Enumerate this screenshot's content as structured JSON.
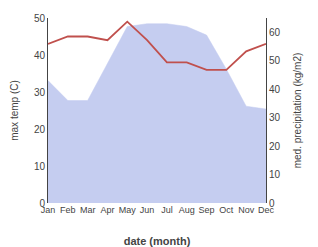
{
  "chart_data": {
    "type": "line",
    "categories": [
      "Jan",
      "Feb",
      "Mar",
      "Apr",
      "May",
      "Jun",
      "Jul",
      "Aug",
      "Sep",
      "Oct",
      "Nov",
      "Dec"
    ],
    "series": [
      {
        "type": "area",
        "axis": "y2",
        "color": "#c5cdf0",
        "values": [
          43,
          36,
          36,
          49,
          62,
          63,
          63,
          62,
          59,
          47,
          34,
          33
        ]
      },
      {
        "type": "line",
        "color": "#c0504d",
        "values": [
          43,
          45,
          45,
          44,
          49,
          44,
          38,
          38,
          36,
          36,
          41,
          43
        ]
      }
    ],
    "xlabel": "date (month)",
    "ylabel": "max temp (C)",
    "y2label": "med. precipitation (kg/m2)",
    "ylim": [
      0,
      50
    ],
    "yticks": [
      0,
      10,
      20,
      30,
      40,
      50
    ],
    "y2lim": [
      0,
      65
    ],
    "y2ticks": [
      0,
      10,
      20,
      30,
      40,
      50,
      60
    ],
    "grid": false
  }
}
